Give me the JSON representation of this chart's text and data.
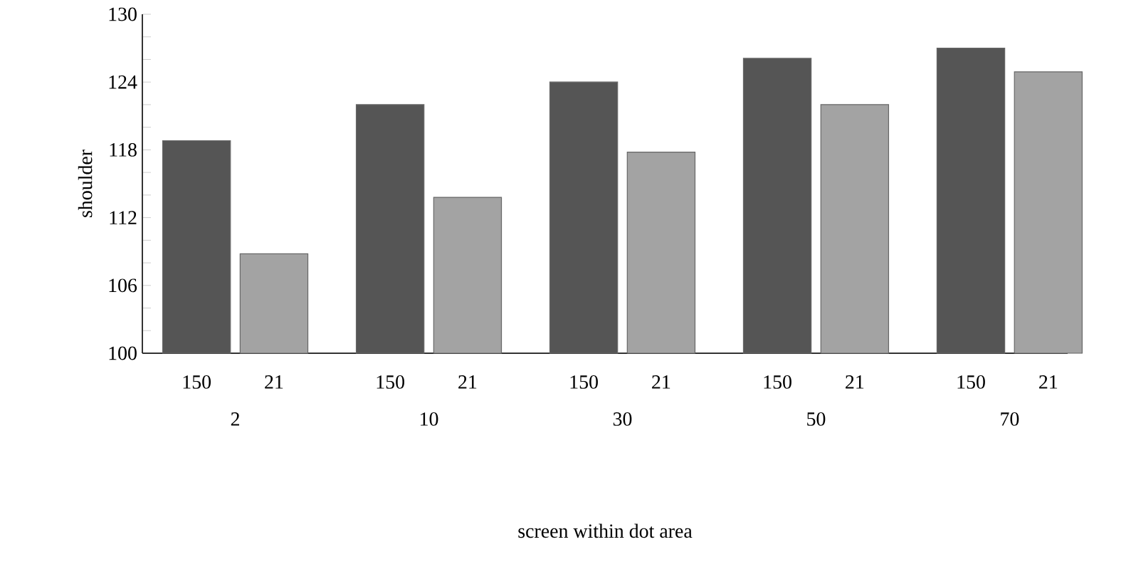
{
  "chart_data": {
    "type": "bar",
    "xlabel": "screen within dot area",
    "ylabel": "shoulder",
    "categories": [
      "2",
      "10",
      "30",
      "50",
      "70"
    ],
    "series": [
      {
        "name": "150",
        "color": "#555555",
        "values": [
          118.8,
          122,
          124,
          126.1,
          127
        ]
      },
      {
        "name": "21",
        "color": "#a3a3a3",
        "values": [
          108.8,
          113.8,
          117.8,
          122,
          124.9
        ]
      }
    ],
    "ylim": [
      100,
      130
    ],
    "yticks": [
      100,
      {
        "value": 102,
        "label": null
      },
      {
        "value": 104,
        "label": null
      },
      106,
      {
        "value": 108,
        "label": null
      },
      {
        "value": 110,
        "label": null
      },
      112,
      {
        "value": 114,
        "label": null
      },
      {
        "value": 116,
        "label": null
      },
      118,
      {
        "value": 120,
        "label": null
      },
      {
        "value": 122,
        "label": null
      },
      124,
      {
        "value": 126,
        "label": null
      },
      {
        "value": 128,
        "label": null
      },
      130
    ],
    "legend": false,
    "grid": false
  }
}
